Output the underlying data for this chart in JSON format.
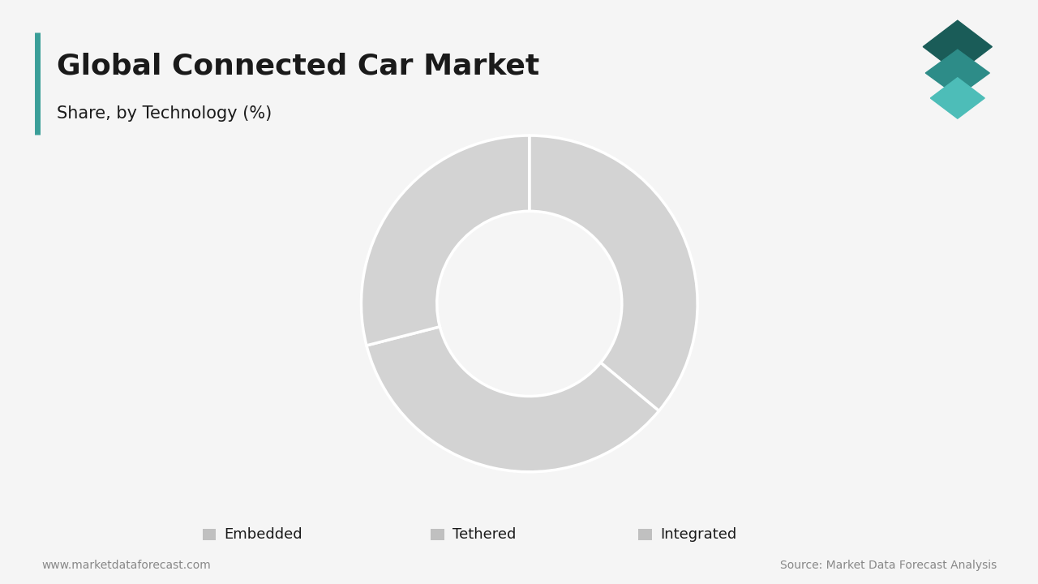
{
  "title": "Global Connected Car Market",
  "subtitle": "Share, by Technology (%)",
  "categories": [
    "Embedded",
    "Tethered",
    "Integrated"
  ],
  "values": [
    36,
    35,
    29
  ],
  "colors": [
    "#d3d3d3",
    "#d3d3d3",
    "#d3d3d3"
  ],
  "wedge_edge_color": "#ffffff",
  "wedge_linewidth": 2.5,
  "donut_hole": 0.55,
  "background_color": "#f5f5f5",
  "title_color": "#1a1a1a",
  "title_fontsize": 26,
  "subtitle_fontsize": 15,
  "accent_color": "#3a9e98",
  "footer_left": "www.marketdataforecast.com",
  "footer_right": "Source: Market Data Forecast Analysis",
  "footer_fontsize": 10,
  "legend_fontsize": 13,
  "legend_square_color": "#c0c0c0",
  "logo_colors": [
    "#1a5c58",
    "#2d8c88",
    "#4dbdb8"
  ]
}
